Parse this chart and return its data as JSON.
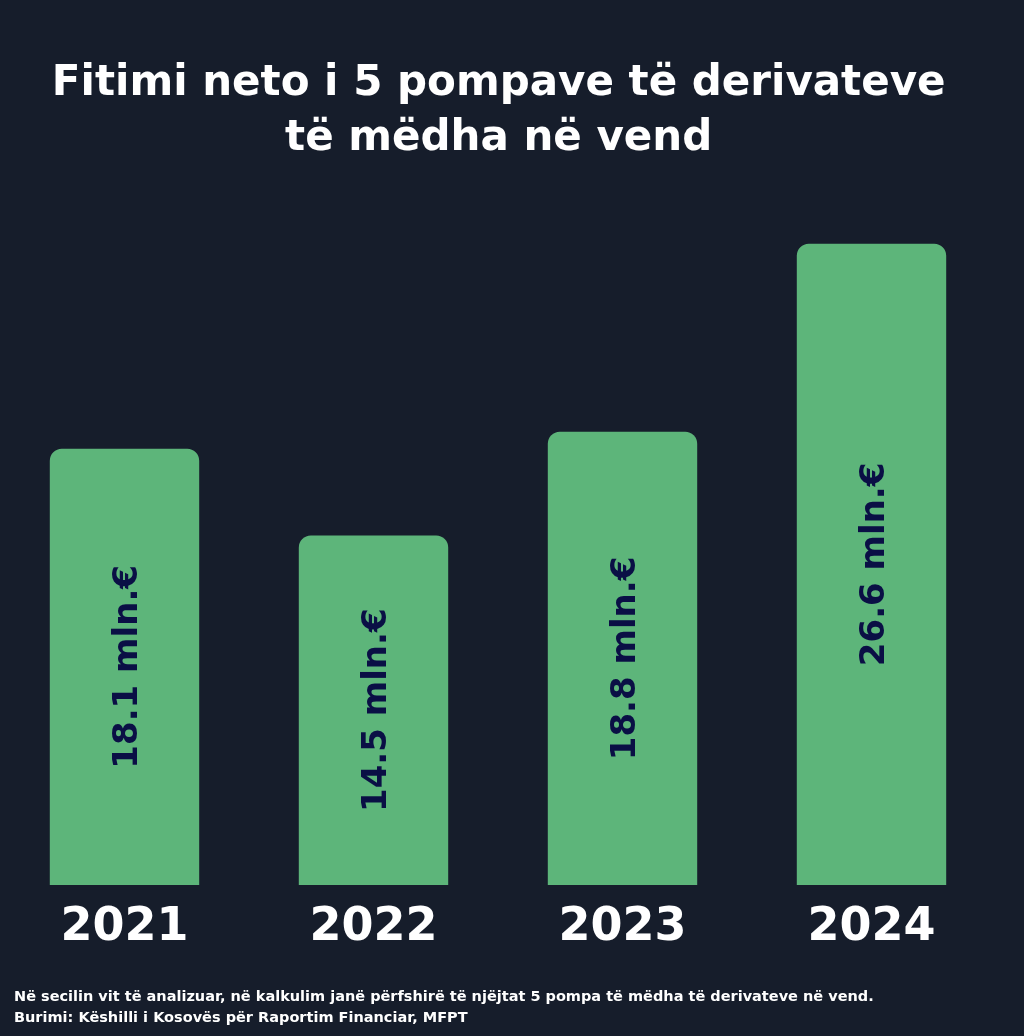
{
  "chart_data": {
    "type": "bar",
    "title": "Fitimi neto i 5 pompave të derivateve\ntë mëdha në vend",
    "categories": [
      "2021",
      "2022",
      "2023",
      "2024"
    ],
    "values": [
      18.1,
      14.5,
      18.8,
      26.6
    ],
    "value_labels": [
      "18.1 mln.€",
      "14.5 mln.€",
      "18.8 mln.€",
      "26.6 mln.€"
    ],
    "color": "#5db57a",
    "tick_labels": "x",
    "grid": false,
    "annotations": [
      "Në secilin vit të analizuar, në kalkulim janë përfshirë të njëjtat 5 pompa të mëdha të derivateve në vend.",
      "Burimi: Këshilli i Kosovës për Raportim Financiar, MFPT"
    ]
  }
}
